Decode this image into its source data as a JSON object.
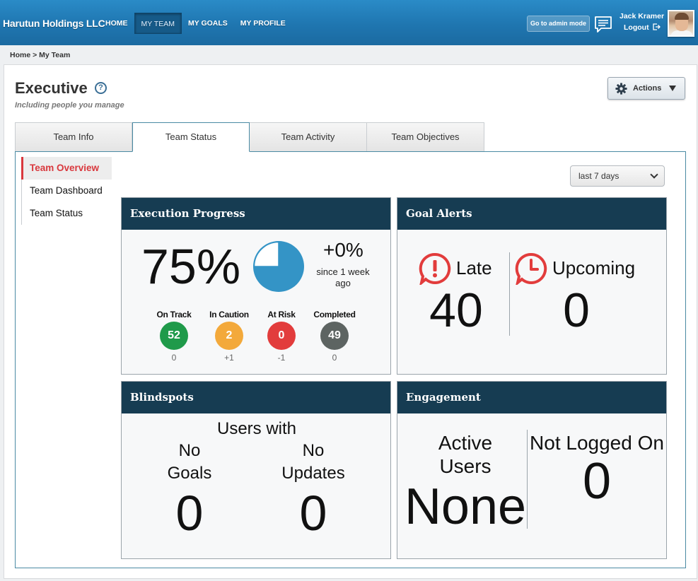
{
  "header": {
    "brand": "Harutun Holdings LLC",
    "nav": [
      "HOME",
      "MY TEAM",
      "MY GOALS",
      "MY PROFILE"
    ],
    "active_nav": "MY TEAM",
    "admin_button": "Go to admin mode",
    "user_name": "Jack Kramer",
    "logout": "Logout"
  },
  "breadcrumb": "Home > My Team",
  "page": {
    "title": "Executive",
    "subtitle": "Including people you manage",
    "actions_label": "Actions"
  },
  "tabs": [
    "Team Info",
    "Team Status",
    "Team Activity",
    "Team Objectives"
  ],
  "active_tab": "Team Status",
  "subnav": [
    "Team Overview",
    "Team Dashboard",
    "Team Status"
  ],
  "active_subnav": "Team Overview",
  "date_range": "last 7 days",
  "execution": {
    "title": "Execution Progress",
    "percent": "75%",
    "percent_value": 75,
    "delta": "+0%",
    "since": "since 1 week ago",
    "stats": [
      {
        "label": "On Track",
        "value": "52",
        "change": "0",
        "color": "#1f9a4a"
      },
      {
        "label": "In Caution",
        "value": "2",
        "change": "+1",
        "color": "#f3a93b"
      },
      {
        "label": "At Risk",
        "value": "0",
        "change": "-1",
        "color": "#e23c3c"
      },
      {
        "label": "Completed",
        "value": "49",
        "change": "0",
        "color": "#5d6462"
      }
    ]
  },
  "alerts": {
    "title": "Goal Alerts",
    "late_label": "Late",
    "late_value": "40",
    "upcoming_label": "Upcoming",
    "upcoming_value": "0",
    "icon_color": "#e23c3c"
  },
  "blindspots": {
    "title": "Blindspots",
    "heading": "Users with",
    "no_goals_1": "No",
    "no_goals_2": "Goals",
    "no_goals_value": "0",
    "no_updates_1": "No",
    "no_updates_2": "Updates",
    "no_updates_value": "0"
  },
  "engagement": {
    "title": "Engagement",
    "active_1": "Active",
    "active_2": "Users",
    "active_value": "None",
    "not_logged_label": "Not Logged On",
    "not_logged_value": "0"
  },
  "colors": {
    "header_blue": "#1f76b0",
    "card_header": "#163c52",
    "pie_blue": "#3494c6",
    "accent_red": "#d9383d"
  }
}
